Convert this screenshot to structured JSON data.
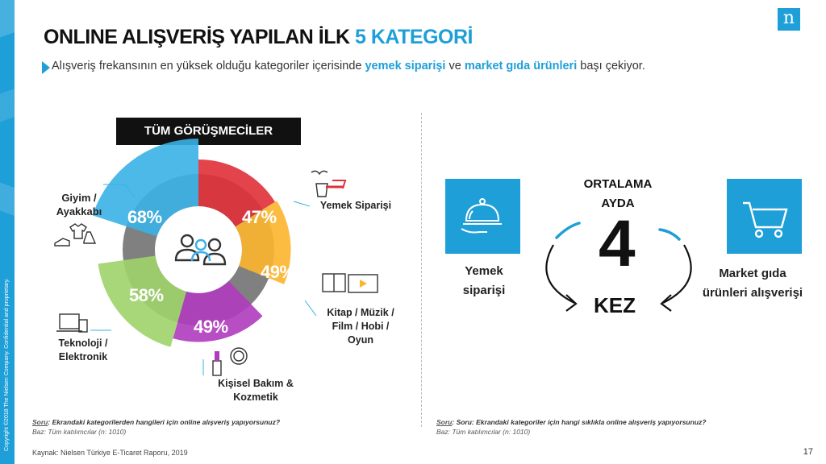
{
  "header": {
    "title_main": "ONLINE ALIŞVERİŞ YAPILAN İLK ",
    "title_highlight": "5 KATEGORİ",
    "subtitle_pre": "Alışveriş frekansının en yüksek olduğu kategoriler içerisinde ",
    "subtitle_hl1": "yemek siparişi",
    "subtitle_mid": " ve ",
    "subtitle_hl2": "market gıda ürünleri",
    "subtitle_post": " başı çekiyor.",
    "logo": "n"
  },
  "left_panel": {
    "badge": "TÜM GÖRÜŞMECİLER",
    "categories": [
      {
        "label": "Giyim / Ayakkabı",
        "value": "68%"
      },
      {
        "label": "Yemek Siparişi",
        "value": "47%"
      },
      {
        "label": "Kitap / Müzik / Film / Hobi / Oyun",
        "value": "49%"
      },
      {
        "label": "Kişisel Bakım & Kozmetik",
        "value": "49%"
      },
      {
        "label": "Teknoloji / Elektronik",
        "value": "58%"
      }
    ],
    "label_lines": {
      "giyim": [
        "Giyim /",
        "Ayakkabı"
      ],
      "yemek": [
        "Yemek Siparişi"
      ],
      "kitap": [
        "Kitap / Müzik /",
        "Film / Hobi /",
        "Oyun"
      ],
      "kisisel": [
        "Kişisel Bakım &",
        "Kozmetik"
      ],
      "teknoloji": [
        "Teknoloji /",
        "Elektronik"
      ]
    },
    "question_label": "Soru",
    "question": ": Ekrandaki kategorilerden hangileri için online alışveriş yapıyorsunuz?",
    "base": "Baz: Tüm katılımcılar (n: 1010)",
    "colors": {
      "giyim": "#3ab1e6",
      "yemek": "#e03038",
      "kitap": "#fbb52c",
      "kisisel": "#b03bbd",
      "teknoloji": "#9fd36a",
      "gray": "#808080"
    }
  },
  "right_panel": {
    "avg_line1": "ORTALAMA",
    "avg_line2": "AYDA",
    "number": "4",
    "unit": "KEZ",
    "left_tile_label": [
      "Yemek",
      "siparişi"
    ],
    "right_tile_label": [
      "Market gıda",
      "ürünleri alışverişi"
    ],
    "question_label": "Soru",
    "question": ": Soru: Ekrandaki kategoriler için hangi sıklıkla online alışveriş yapıyorsunuz?",
    "base": "Baz: Tüm katılımcılar (n: 1010)"
  },
  "footer": {
    "source": "Kaynak: Nielsen Türkiye E-Ticaret Raporu, 2019",
    "page": "17",
    "copyright": "Copyright ©2018 The Nielsen Company. Confidential and proprietary."
  }
}
